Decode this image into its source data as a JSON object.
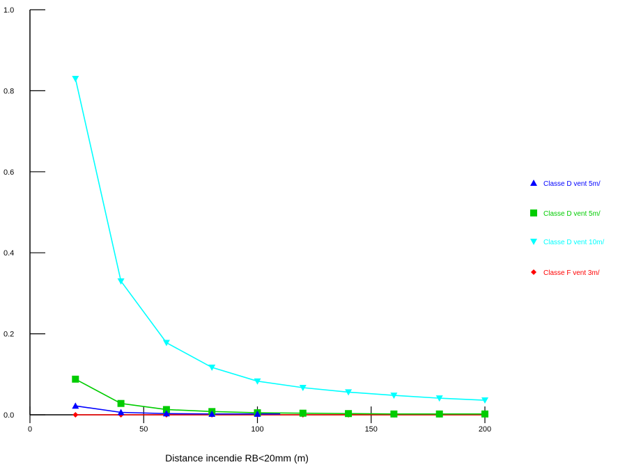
{
  "chart_data": {
    "type": "line",
    "title": "",
    "xlabel": "Distance incendie RB<20mm (m)",
    "ylabel": "",
    "xlim": [
      0,
      200
    ],
    "ylim": [
      0,
      1.0
    ],
    "x_ticks": [
      0,
      50,
      100,
      150,
      200
    ],
    "x_tick_labels": [
      "0",
      "50",
      "100",
      "150",
      "200"
    ],
    "y_ticks": [
      0,
      0.2,
      0.4,
      0.6,
      0.8,
      1.0
    ],
    "y_tick_labels": [
      "0.0",
      "0.2",
      "0.4",
      "0.6",
      "0.8",
      "1.0"
    ],
    "grid": false,
    "legend_position": "right",
    "x": [
      20,
      40,
      60,
      80,
      100,
      120,
      140,
      160,
      180,
      200
    ],
    "series": [
      {
        "name": "Classe D vent 5m/",
        "color": "#0000ff",
        "marker": "triangle-up",
        "x": [
          20,
          40,
          60,
          80,
          100,
          110
        ],
        "values": [
          0.022,
          0.006,
          0.003,
          0.002,
          0.002,
          0.002
        ]
      },
      {
        "name": "Classe D vent 5m/",
        "color": "#00cc00",
        "marker": "square",
        "x": [
          20,
          40,
          60,
          80,
          100,
          120,
          140,
          160,
          180,
          200
        ],
        "values": [
          0.088,
          0.028,
          0.013,
          0.008,
          0.005,
          0.004,
          0.003,
          0.002,
          0.002,
          0.002
        ]
      },
      {
        "name": "Classe D vent 10m/",
        "color": "#00ffff",
        "marker": "triangle-down",
        "x": [
          20,
          40,
          60,
          80,
          100,
          120,
          140,
          160,
          180,
          200
        ],
        "values": [
          0.83,
          0.33,
          0.178,
          0.117,
          0.083,
          0.067,
          0.056,
          0.048,
          0.041,
          0.036
        ]
      },
      {
        "name": "Classe F vent 3m/",
        "color": "#ff0000",
        "marker": "diamond",
        "x": [
          20,
          40,
          60,
          80,
          100,
          120,
          140,
          160,
          180,
          200
        ],
        "values": [
          0.0,
          0.0,
          0.0,
          0.0,
          0.0,
          0.0,
          0.0,
          0.0,
          0.0,
          0.0
        ]
      }
    ]
  }
}
